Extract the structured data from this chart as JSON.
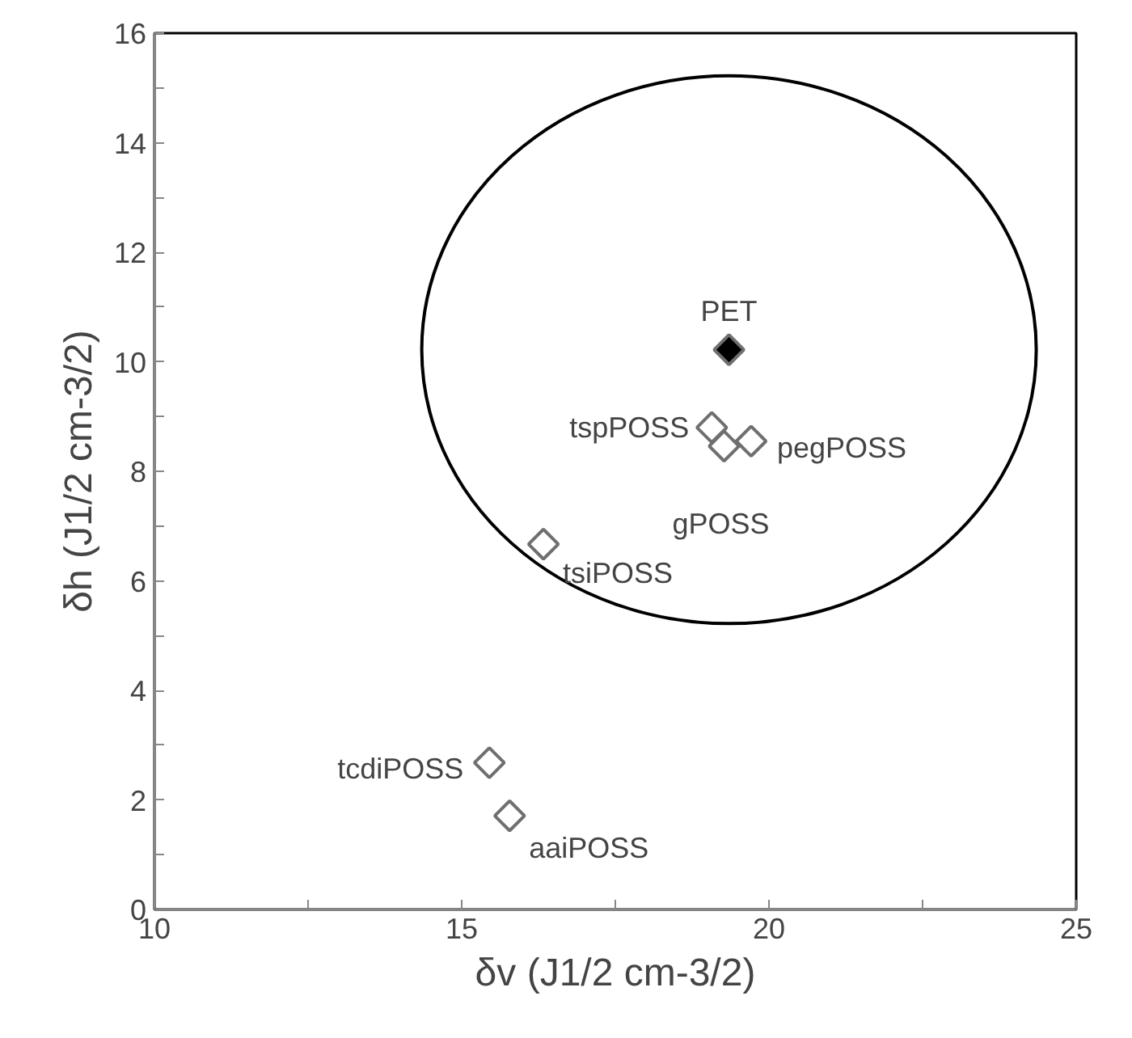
{
  "chart_data": {
    "type": "scatter",
    "xlabel": "δv (J1/2 cm-3/2)",
    "ylabel": "δh (J1/2 cm-3/2)",
    "xlim": [
      10,
      25
    ],
    "ylim": [
      0,
      16
    ],
    "xticks": [
      10,
      {
        "value": 12.5,
        "label": null
      },
      15,
      {
        "value": 17.5,
        "label": null
      },
      20,
      {
        "value": 22.5,
        "label": null
      },
      25
    ],
    "yticks": [
      0,
      {
        "value": 1,
        "label": null
      },
      2,
      {
        "value": 3,
        "label": null
      },
      4,
      {
        "value": 5,
        "label": null
      },
      6,
      {
        "value": 7,
        "label": null
      },
      8,
      {
        "value": 9,
        "label": null
      },
      10,
      {
        "value": 11,
        "label": null
      },
      12,
      {
        "value": 13,
        "label": null
      },
      14,
      {
        "value": 15,
        "label": null
      },
      16
    ],
    "grid": false,
    "marker": "diamond",
    "series": [
      {
        "name": "PET",
        "color": "#000000",
        "x": [
          19.35
        ],
        "values": [
          10.22
        ]
      },
      {
        "name": "tspPOSS",
        "color": "#ffffff",
        "x": [
          19.07
        ],
        "values": [
          8.8
        ]
      },
      {
        "name": "gPOSS",
        "color": "#ffffff",
        "x": [
          19.27
        ],
        "values": [
          8.46
        ]
      },
      {
        "name": "pegPOSS",
        "color": "#ffffff",
        "x": [
          19.71
        ],
        "values": [
          8.55
        ]
      },
      {
        "name": "tsiPOSS",
        "color": "#ffffff",
        "x": [
          16.33
        ],
        "values": [
          6.67
        ]
      },
      {
        "name": "tcdiPOSS",
        "color": "#ffffff",
        "x": [
          15.45
        ],
        "values": [
          2.68
        ]
      },
      {
        "name": "aaiPOSS",
        "color": "#ffffff",
        "x": [
          15.78
        ],
        "values": [
          1.71
        ]
      }
    ]
  }
}
